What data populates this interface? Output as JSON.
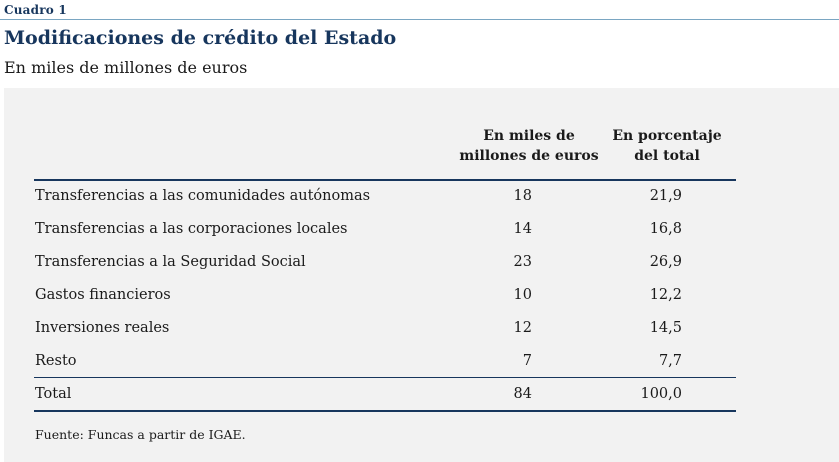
{
  "label": "Cuadro 1",
  "title": "Modificaciones de crédito del Estado",
  "subtitle": "En miles de millones de euros",
  "table": {
    "headers": {
      "col1": [
        "En miles de",
        "millones de euros"
      ],
      "col2": [
        "En porcentaje",
        "del total"
      ]
    },
    "rows": [
      {
        "label": "Transferencias a las comunidades autónomas",
        "value": "18",
        "pct": "21,9"
      },
      {
        "label": "Transferencias a las corporaciones locales",
        "value": "14",
        "pct": "16,8"
      },
      {
        "label": "Transferencias a la Seguridad Social",
        "value": "23",
        "pct": "26,9"
      },
      {
        "label": "Gastos financieros",
        "value": "10",
        "pct": "12,2"
      },
      {
        "label": "Inversiones reales",
        "value": "12",
        "pct": "14,5"
      },
      {
        "label": "Resto",
        "value": "7",
        "pct": "7,7"
      }
    ],
    "total": {
      "label": "Total",
      "value": "84",
      "pct": "100,0"
    }
  },
  "source": "Fuente: Funcas a partir de IGAE.",
  "colors": {
    "title": "#17365d",
    "rule": "#17365d",
    "panel": "#f2f2f2"
  }
}
